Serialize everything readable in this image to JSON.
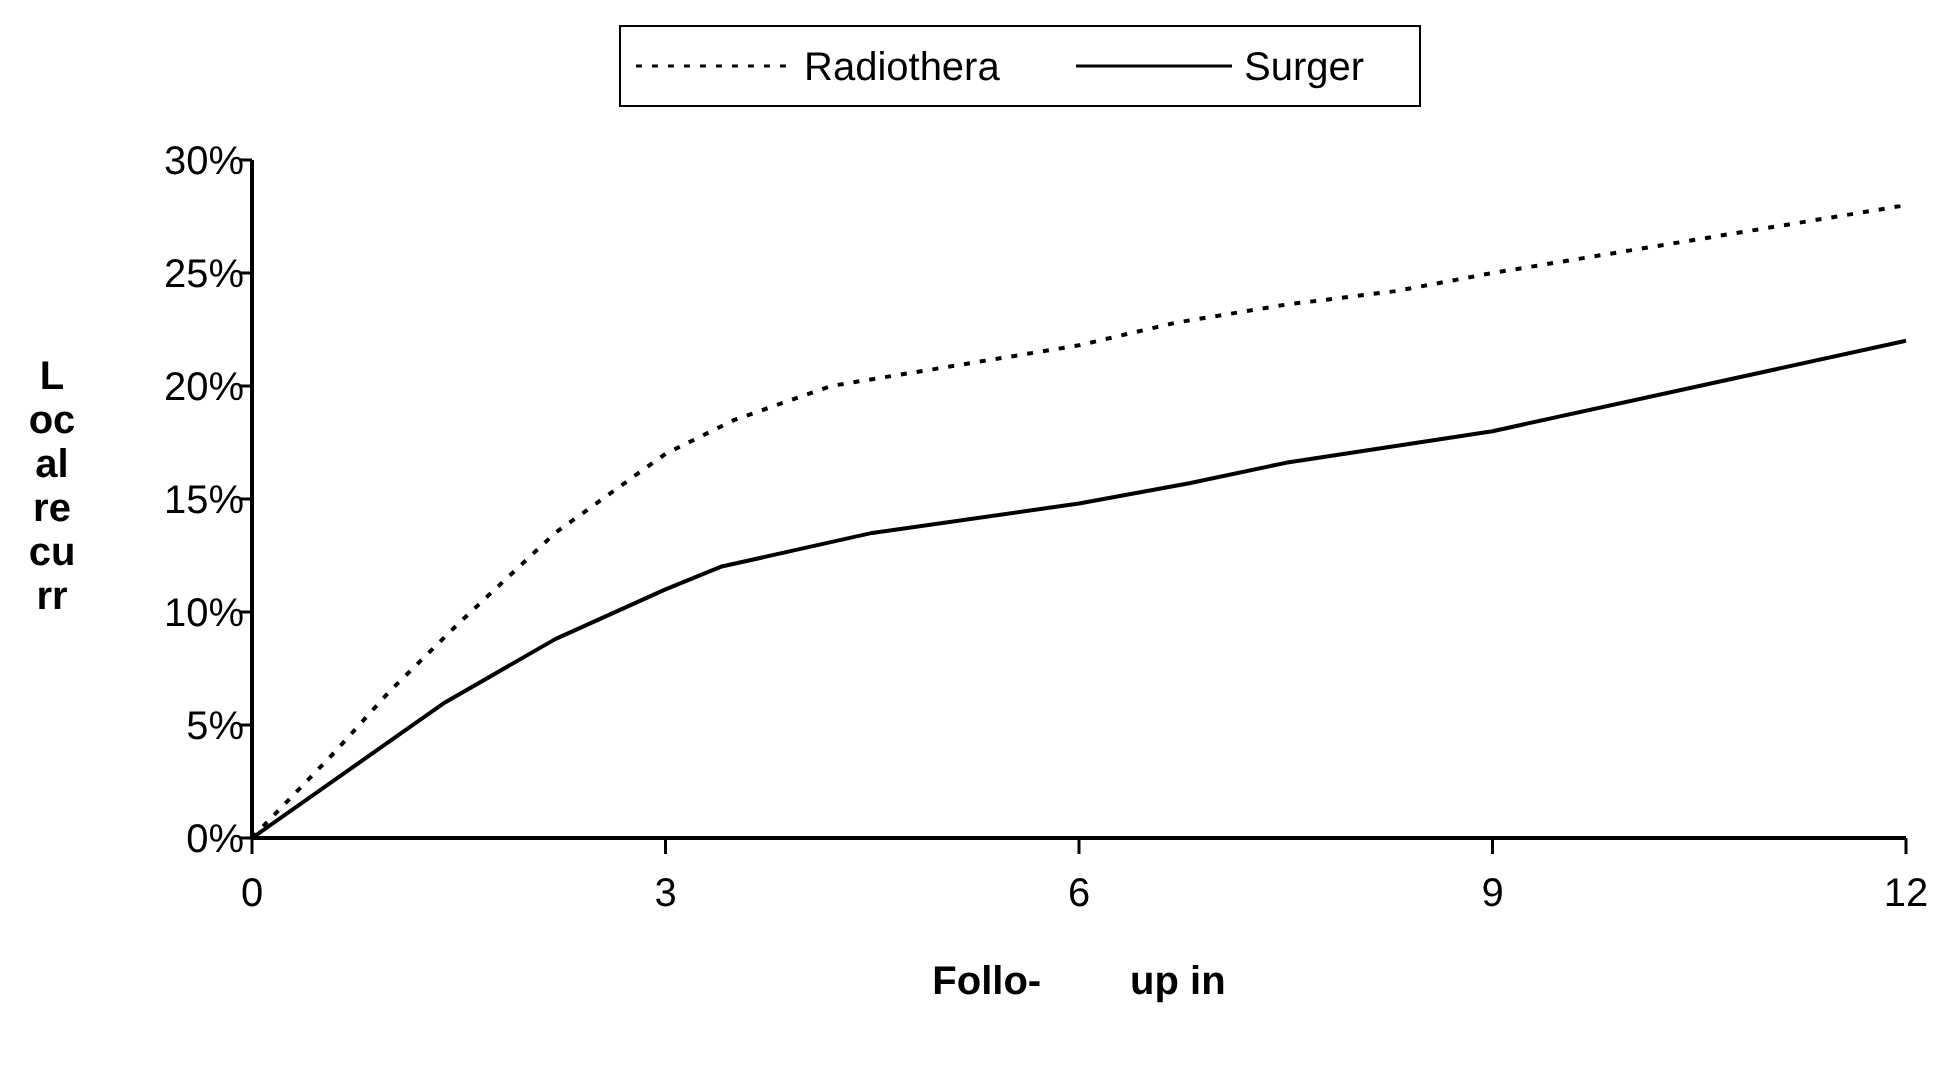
{
  "chart_data": {
    "type": "line",
    "xlabel": "Follo-        up in",
    "ylabel": "L\noc\nal\nre\ncu\nrr",
    "xlim": [
      0,
      12
    ],
    "xticks": [
      0,
      3,
      6,
      9,
      12
    ],
    "ylim": [
      0,
      30
    ],
    "yticks": [
      {
        "value": 0,
        "label": "0%"
      },
      {
        "value": 5,
        "label": "5%"
      },
      {
        "value": 10,
        "label": "10%"
      },
      {
        "value": 15,
        "label": "15%"
      },
      {
        "value": 20,
        "label": "20%"
      },
      {
        "value": 25,
        "label": "25%"
      },
      {
        "value": 30,
        "label": "30%"
      }
    ],
    "grid": false,
    "legend": "top",
    "marker": "none",
    "series": [
      {
        "name": "Radiothera",
        "color": "#000000",
        "line_style": "dotted",
        "x": [
          0,
          0.6,
          1,
          1.5,
          2.2,
          3,
          3.5,
          4.2,
          5,
          6,
          6.7,
          7.5,
          8.3,
          9,
          10,
          11,
          12
        ],
        "values": [
          0,
          3.8,
          6.5,
          9.5,
          13.5,
          17,
          18.5,
          20,
          20.8,
          21.8,
          22.8,
          23.6,
          24.2,
          25,
          26,
          27,
          28
        ]
      },
      {
        "name": "Surger",
        "color": "#000000",
        "line_style": "solid",
        "x": [
          0,
          1.4,
          2.2,
          3,
          3.4,
          4.5,
          6,
          6.8,
          7.5,
          9,
          10.5,
          12
        ],
        "values": [
          0,
          6,
          8.8,
          11,
          12,
          13.5,
          14.8,
          15.7,
          16.6,
          18,
          20,
          22
        ]
      }
    ]
  }
}
